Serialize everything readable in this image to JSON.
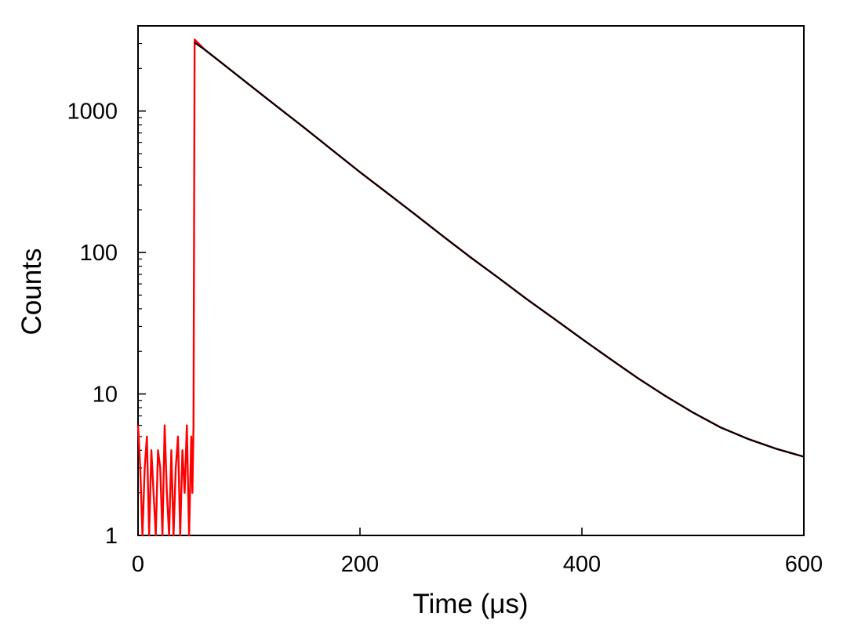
{
  "chart_data": {
    "type": "line",
    "title": "",
    "xlabel": "Time (μs)",
    "ylabel": "Counts",
    "xlim": [
      0,
      600
    ],
    "ylim": [
      1,
      4000
    ],
    "yscale": "log",
    "grid": false,
    "legend": "none",
    "x_ticks": [
      0,
      200,
      400,
      600
    ],
    "x_tick_labels": [
      "0",
      "200",
      "400",
      "600"
    ],
    "y_ticks": [
      1,
      10,
      100,
      1000
    ],
    "y_tick_labels": [
      "1",
      "10",
      "100",
      "1000"
    ],
    "series": [
      {
        "kind": "measured-decay",
        "color": "#ff0000",
        "x": [
          0,
          2,
          4,
          6,
          8,
          10,
          12,
          14,
          16,
          18,
          20,
          22,
          24,
          26,
          28,
          30,
          32,
          34,
          36,
          38,
          40,
          42,
          44,
          46,
          48,
          49,
          50,
          51,
          60,
          75,
          100,
          125,
          150,
          175,
          200,
          225,
          250,
          275,
          300,
          325,
          350,
          375,
          400,
          425,
          450,
          475,
          500,
          525,
          550,
          575,
          600
        ],
        "y": [
          6,
          3,
          1,
          3,
          5,
          1,
          4,
          2,
          1,
          4,
          3,
          1,
          6,
          2,
          1,
          4,
          1,
          3,
          5,
          1,
          4,
          2,
          6,
          1,
          5,
          2,
          6,
          3200,
          2720,
          2200,
          1540,
          1080,
          760,
          530,
          370,
          262,
          185,
          130,
          92,
          66,
          47,
          34,
          24.5,
          17.8,
          13.0,
          9.7,
          7.4,
          5.8,
          4.8,
          4.1,
          3.6
        ]
      },
      {
        "kind": "fit",
        "color": "#000000",
        "x": [
          51,
          60,
          75,
          100,
          125,
          150,
          175,
          200,
          225,
          250,
          275,
          300,
          325,
          350,
          375,
          400,
          425,
          450,
          475,
          500,
          525,
          550,
          575,
          600
        ],
        "y": [
          3050,
          2720,
          2200,
          1540,
          1080,
          760,
          530,
          370,
          262,
          185,
          130,
          92,
          66,
          47,
          34,
          24.5,
          17.8,
          13.0,
          9.7,
          7.4,
          5.8,
          4.8,
          4.1,
          3.6
        ]
      }
    ]
  }
}
